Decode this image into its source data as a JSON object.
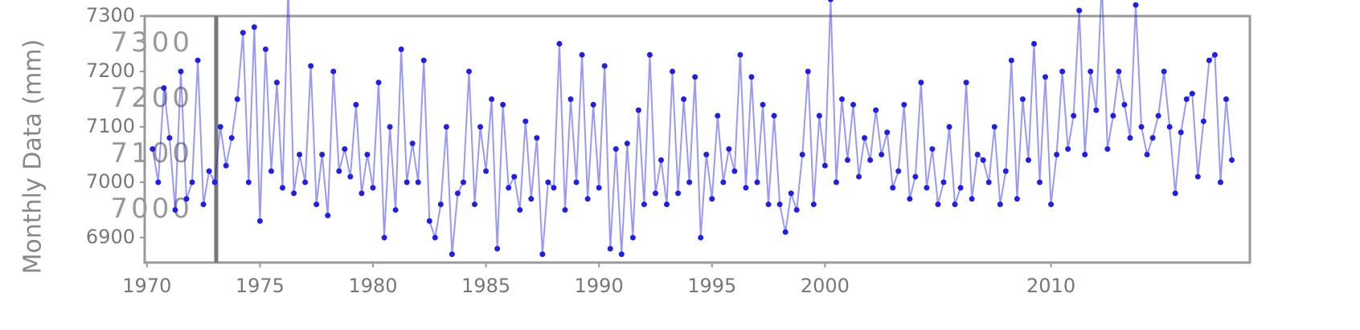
{
  "chart_data": {
    "type": "line",
    "y_label": "Monthly Data (mm)",
    "x": [
      1970.25,
      1970.5,
      1970.75,
      1971,
      1971.25,
      1971.5,
      1971.75,
      1972,
      1972.25,
      1972.5,
      1972.75,
      1973,
      1973.25,
      1973.5,
      1973.75,
      1974,
      1974.25,
      1974.5,
      1974.75,
      1975,
      1975.25,
      1975.5,
      1975.75,
      1976,
      1976.25,
      1976.5,
      1976.75,
      1977,
      1977.25,
      1977.5,
      1977.75,
      1978,
      1978.25,
      1978.5,
      1978.75,
      1979,
      1979.25,
      1979.5,
      1979.75,
      1980,
      1980.25,
      1980.5,
      1980.75,
      1981,
      1981.25,
      1981.5,
      1981.75,
      1982,
      1982.25,
      1982.5,
      1982.75,
      1983,
      1983.25,
      1983.5,
      1983.75,
      1984,
      1984.25,
      1984.5,
      1984.75,
      1985,
      1985.25,
      1985.5,
      1985.75,
      1986,
      1986.25,
      1986.5,
      1986.75,
      1987,
      1987.25,
      1987.5,
      1987.75,
      1988,
      1988.25,
      1988.5,
      1988.75,
      1989,
      1989.25,
      1989.5,
      1989.75,
      1990,
      1990.25,
      1990.5,
      1990.75,
      1991,
      1991.25,
      1991.5,
      1991.75,
      1992,
      1992.25,
      1992.5,
      1992.75,
      1993,
      1993.25,
      1993.5,
      1993.75,
      1994,
      1994.25,
      1994.5,
      1994.75,
      1995,
      1995.25,
      1995.5,
      1995.75,
      1996,
      1996.25,
      1996.5,
      1996.75,
      1997,
      1997.25,
      1997.5,
      1997.75,
      1998,
      1998.25,
      1998.5,
      1998.75,
      1999,
      1999.25,
      1999.5,
      1999.75,
      2000,
      2000.25,
      2000.5,
      2000.75,
      2001,
      2001.25,
      2001.5,
      2001.75,
      2002,
      2002.25,
      2002.5,
      2002.75,
      2003,
      2003.25,
      2003.5,
      2003.75,
      2004,
      2004.25,
      2004.5,
      2004.75,
      2005,
      2005.25,
      2005.5,
      2005.75,
      2006,
      2006.25,
      2006.5,
      2006.75,
      2007,
      2007.25,
      2007.5,
      2007.75,
      2008,
      2008.25,
      2008.5,
      2008.75,
      2009,
      2009.25,
      2009.5,
      2009.75,
      2010,
      2010.25,
      2010.5,
      2010.75,
      2011,
      2011.25,
      2011.5,
      2011.75,
      2012,
      2012.25,
      2012.5,
      2012.75,
      2013,
      2013.25,
      2013.5,
      2013.75,
      2014,
      2014.25,
      2014.5,
      2014.75,
      2015,
      2015.25,
      2015.5,
      2015.75,
      2016,
      2016.25,
      2016.5,
      2016.75,
      2017,
      2017.25,
      2017.5,
      2017.75,
      2018
    ],
    "series": [
      {
        "color": "#1f1fe6",
        "values": [
          7060,
          7000,
          7170,
          7080,
          6950,
          7200,
          6970,
          7000,
          7220,
          6960,
          7020,
          7000,
          7100,
          7030,
          7080,
          7150,
          7270,
          7000,
          7280,
          6930,
          7240,
          7020,
          7180,
          6990,
          7350,
          6980,
          7050,
          7000,
          7210,
          6960,
          7050,
          6940,
          7200,
          7020,
          7060,
          7010,
          7140,
          6980,
          7050,
          6990,
          7180,
          6900,
          7100,
          6950,
          7240,
          7000,
          7070,
          7000,
          7220,
          6930,
          6900,
          6960,
          7100,
          6870,
          6980,
          7000,
          7200,
          6960,
          7100,
          7020,
          7150,
          6880,
          7140,
          6990,
          7010,
          6950,
          7110,
          6970,
          7080,
          6870,
          7000,
          6990,
          7250,
          6950,
          7150,
          7000,
          7230,
          6970,
          7140,
          6990,
          7210,
          6880,
          7060,
          6870,
          7070,
          6900,
          7130,
          6960,
          7230,
          6980,
          7040,
          6960,
          7200,
          6980,
          7150,
          7000,
          7190,
          6900,
          7050,
          6970,
          7120,
          7000,
          7060,
          7020,
          7230,
          6990,
          7190,
          7000,
          7140,
          6960,
          7120,
          6960,
          6910,
          6980,
          6950,
          7050,
          7200,
          6960,
          7120,
          7030,
          7330,
          7000,
          7150,
          7040,
          7140,
          7010,
          7080,
          7040,
          7130,
          7050,
          7090,
          6990,
          7020,
          7140,
          6970,
          7010,
          7180,
          6990,
          7060,
          6960,
          7000,
          7100,
          6960,
          6990,
          7180,
          6970,
          7050,
          7040,
          7000,
          7100,
          6960,
          7020,
          7220,
          6970,
          7150,
          7040,
          7250,
          7000,
          7190,
          6960,
          7050,
          7200,
          7060,
          7120,
          7310,
          7050,
          7200,
          7130,
          7360,
          7060,
          7120,
          7200,
          7140,
          7080,
          7320,
          7100,
          7050,
          7080,
          7120,
          7200,
          7100,
          6980,
          7090,
          7150,
          7160,
          7010,
          7110,
          7220,
          7230,
          7000,
          7150,
          7040
        ]
      }
    ],
    "xlim": [
      1969.9,
      2018.8
    ],
    "xticks": [
      1970,
      1975,
      1980,
      1985,
      1990,
      1995,
      2000,
      2010
    ],
    "ylim": [
      6855,
      7300
    ],
    "yticks": [
      6900,
      7000,
      7100,
      7200,
      7300
    ],
    "y2lim": [
      6905,
      7350
    ],
    "y2ticks": [
      7000,
      7100,
      7200,
      7300
    ]
  }
}
